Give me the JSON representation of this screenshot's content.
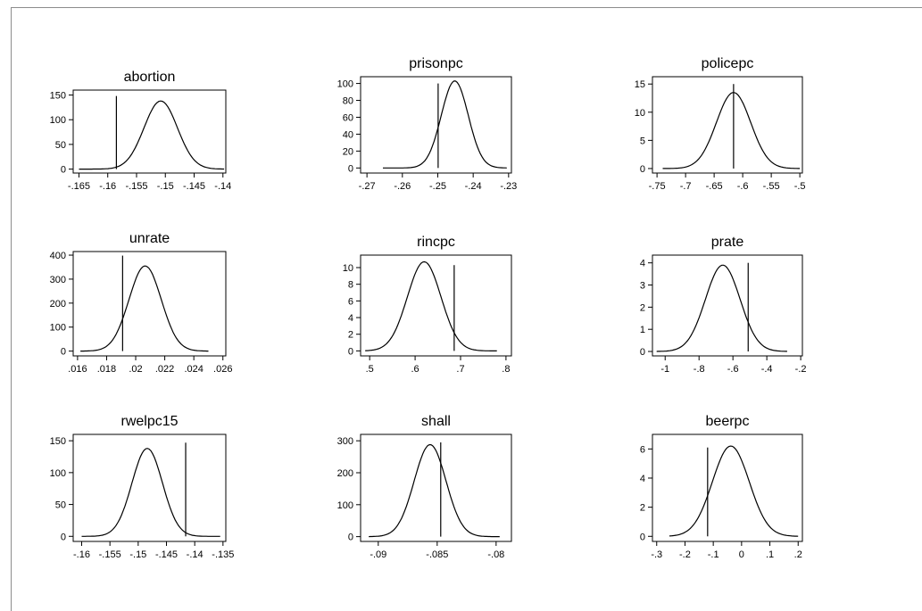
{
  "chart_data": [
    {
      "type": "line",
      "title": "abortion",
      "xticks": [
        -0.165,
        -0.16,
        -0.155,
        -0.15,
        -0.145,
        -0.14
      ],
      "xtick_labels": [
        "-.165",
        "-.16",
        "-.155",
        "-.15",
        "-.145",
        "-.14"
      ],
      "xlim": [
        -0.166,
        -0.1395
      ],
      "yticks": [
        0,
        50,
        100,
        150
      ],
      "ytick_labels": [
        "0",
        "50",
        "100",
        "150"
      ],
      "ylim": [
        -8,
        160
      ],
      "mean": -0.1508,
      "sd": 0.0029,
      "peak": 138,
      "curve_range": [
        -0.165,
        -0.1398
      ],
      "vline": -0.1585,
      "vline_range": [
        0,
        148
      ]
    },
    {
      "type": "line",
      "title": "prisonpc",
      "xticks": [
        -0.27,
        -0.26,
        -0.25,
        -0.24,
        -0.23
      ],
      "xtick_labels": [
        "-.27",
        "-.26",
        "-.25",
        "-.24",
        "-.23"
      ],
      "xlim": [
        -0.2718,
        -0.2292
      ],
      "yticks": [
        0,
        20,
        40,
        60,
        80,
        100
      ],
      "ytick_labels": [
        "0",
        "20",
        "40",
        "60",
        "80",
        "100"
      ],
      "ylim": [
        -6,
        108
      ],
      "mean": -0.2452,
      "sd": 0.0038,
      "peak": 103,
      "curve_range": [
        -0.2655,
        -0.2305
      ],
      "vline": -0.2499,
      "vline_range": [
        0,
        100
      ]
    },
    {
      "type": "line",
      "title": "policepc",
      "xticks": [
        -0.75,
        -0.7,
        -0.65,
        -0.6,
        -0.55,
        -0.5
      ],
      "xtick_labels": [
        "-.75",
        "-.7",
        "-.65",
        "-.6",
        "-.55",
        "-.5"
      ],
      "xlim": [
        -0.758,
        -0.4955
      ],
      "yticks": [
        0,
        5,
        10,
        15
      ],
      "ytick_labels": [
        "0",
        "5",
        "10",
        "15"
      ],
      "ylim": [
        -0.8,
        16.3
      ],
      "mean": -0.616,
      "sd": 0.03,
      "peak": 13.5,
      "curve_range": [
        -0.74,
        -0.5
      ],
      "vline": -0.616,
      "vline_range": [
        0,
        15
      ]
    },
    {
      "type": "line",
      "title": "unrate",
      "xticks": [
        0.016,
        0.018,
        0.02,
        0.022,
        0.024,
        0.026
      ],
      "xtick_labels": [
        ".016",
        ".018",
        ".02",
        ".022",
        ".024",
        ".026"
      ],
      "xlim": [
        0.0157,
        0.0262
      ],
      "yticks": [
        0,
        100,
        200,
        300,
        400
      ],
      "ytick_labels": [
        "0",
        "100",
        "200",
        "300",
        "400"
      ],
      "ylim": [
        -20,
        415
      ],
      "mean": 0.02065,
      "sd": 0.00111,
      "peak": 355,
      "curve_range": [
        0.0162,
        0.025
      ],
      "vline": 0.0191,
      "vline_range": [
        0,
        398
      ]
    },
    {
      "type": "line",
      "title": "rincpc",
      "xticks": [
        0.5,
        0.6,
        0.7,
        0.8
      ],
      "xtick_labels": [
        ".5",
        ".6",
        ".7",
        ".8"
      ],
      "xlim": [
        0.48,
        0.812
      ],
      "yticks": [
        0,
        2,
        4,
        6,
        8,
        10
      ],
      "ytick_labels": [
        "0",
        "2",
        "4",
        "6",
        "8",
        "10"
      ],
      "ylim": [
        -0.6,
        11.5
      ],
      "mean": 0.62,
      "sd": 0.037,
      "peak": 10.7,
      "curve_range": [
        0.49,
        0.78
      ],
      "vline": 0.686,
      "vline_range": [
        0,
        10.3
      ]
    },
    {
      "type": "line",
      "title": "prate",
      "xticks": [
        -1,
        -0.8,
        -0.6,
        -0.4,
        -0.2
      ],
      "xtick_labels": [
        "-1",
        "-.8",
        "-.6",
        "-.4",
        "-.2"
      ],
      "xlim": [
        -1.075,
        -0.19
      ],
      "yticks": [
        0,
        1,
        2,
        3,
        4
      ],
      "ytick_labels": [
        "0",
        "1",
        "2",
        "3",
        "4"
      ],
      "ylim": [
        -0.2,
        4.35
      ],
      "mean": -0.66,
      "sd": 0.102,
      "peak": 3.9,
      "curve_range": [
        -1.05,
        -0.28
      ],
      "vline": -0.51,
      "vline_range": [
        0,
        4
      ]
    },
    {
      "type": "line",
      "title": "rwelpc15",
      "xticks": [
        -0.16,
        -0.155,
        -0.15,
        -0.145,
        -0.14,
        -0.135
      ],
      "xtick_labels": [
        "-.16",
        "-.155",
        "-.15",
        "-.145",
        "-.14",
        "-.135"
      ],
      "xlim": [
        -0.1615,
        -0.1345
      ],
      "yticks": [
        0,
        50,
        100,
        150
      ],
      "ytick_labels": [
        "0",
        "50",
        "100",
        "150"
      ],
      "ylim": [
        -8,
        160
      ],
      "mean": -0.1484,
      "sd": 0.0027,
      "peak": 138,
      "curve_range": [
        -0.16,
        -0.1355
      ],
      "vline": -0.1416,
      "vline_range": [
        0,
        147
      ]
    },
    {
      "type": "line",
      "title": "shall",
      "xticks": [
        -0.09,
        -0.085,
        -0.08
      ],
      "xtick_labels": [
        "-.09",
        "-.085",
        "-.08"
      ],
      "xlim": [
        -0.0915,
        -0.0787
      ],
      "yticks": [
        0,
        100,
        200,
        300
      ],
      "ytick_labels": [
        "0",
        "100",
        "200",
        "300"
      ],
      "ylim": [
        -15,
        320
      ],
      "mean": -0.0856,
      "sd": 0.00135,
      "peak": 288,
      "curve_range": [
        -0.0908,
        -0.0797
      ],
      "vline": -0.0847,
      "vline_range": [
        0,
        295
      ]
    },
    {
      "type": "line",
      "title": "beerpc",
      "xticks": [
        -0.3,
        -0.2,
        -0.1,
        0,
        0.1,
        0.2
      ],
      "xtick_labels": [
        "-.3",
        "-.2",
        "-.1",
        "0",
        ".1",
        ".2"
      ],
      "xlim": [
        -0.315,
        0.215
      ],
      "yticks": [
        0,
        2,
        4,
        6
      ],
      "ytick_labels": [
        "0",
        "2",
        "4",
        "6"
      ],
      "ylim": [
        -0.35,
        7
      ],
      "mean": -0.038,
      "sd": 0.065,
      "peak": 6.2,
      "curve_range": [
        -0.255,
        0.2
      ],
      "vline": -0.12,
      "vline_range": [
        0,
        6.1
      ]
    }
  ]
}
